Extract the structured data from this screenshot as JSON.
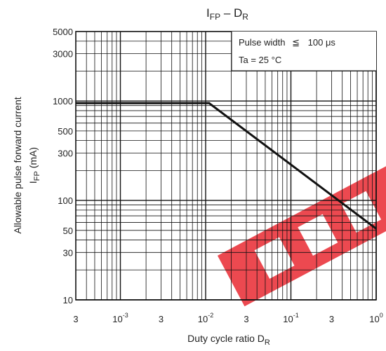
{
  "chart_data": {
    "type": "line",
    "title": {
      "main": "I",
      "main_sub": "FP",
      "sep": " – D",
      "sep_sub": "R"
    },
    "xlabel": {
      "main": "Duty cycle ratio   D",
      "sub": "R"
    },
    "ylabel": {
      "line1": "Allowable pulse forward current",
      "line2": "I",
      "line2_sub": "FP",
      "line2_unit": "  (mA)"
    },
    "x_scale": "log",
    "y_scale": "log",
    "xlim": [
      0.0003,
      1
    ],
    "ylim": [
      10,
      5000
    ],
    "grid": true,
    "x_ticks": [
      {
        "value": 0.0003,
        "base": "3",
        "exp": ""
      },
      {
        "value": 0.001,
        "base": "10",
        "exp": "-3"
      },
      {
        "value": 0.003,
        "base": "3",
        "exp": ""
      },
      {
        "value": 0.01,
        "base": "10",
        "exp": "-2"
      },
      {
        "value": 0.03,
        "base": "3",
        "exp": ""
      },
      {
        "value": 0.1,
        "base": "10",
        "exp": "-1"
      },
      {
        "value": 0.3,
        "base": "3",
        "exp": ""
      },
      {
        "value": 1,
        "base": "10",
        "exp": "0"
      }
    ],
    "y_ticks": [
      {
        "value": 10,
        "label": "10"
      },
      {
        "value": 30,
        "label": "30"
      },
      {
        "value": 50,
        "label": "50"
      },
      {
        "value": 100,
        "label": "100"
      },
      {
        "value": 300,
        "label": "300"
      },
      {
        "value": 500,
        "label": "500"
      },
      {
        "value": 1000,
        "label": "1000"
      },
      {
        "value": 3000,
        "label": "3000"
      },
      {
        "value": 5000,
        "label": "5000"
      }
    ],
    "conditions": {
      "pulse_label": "Pulse width",
      "pulse_symbol": "≦",
      "pulse_value": "100 μs",
      "ta": "Ta = 25 °C"
    },
    "series": [
      {
        "x": [
          0.0003,
          0.011,
          1
        ],
        "y": [
          950,
          950,
          52
        ]
      }
    ],
    "colors": {
      "line": "#111111",
      "grid": "#111111",
      "watermark": "#e8222a"
    }
  }
}
